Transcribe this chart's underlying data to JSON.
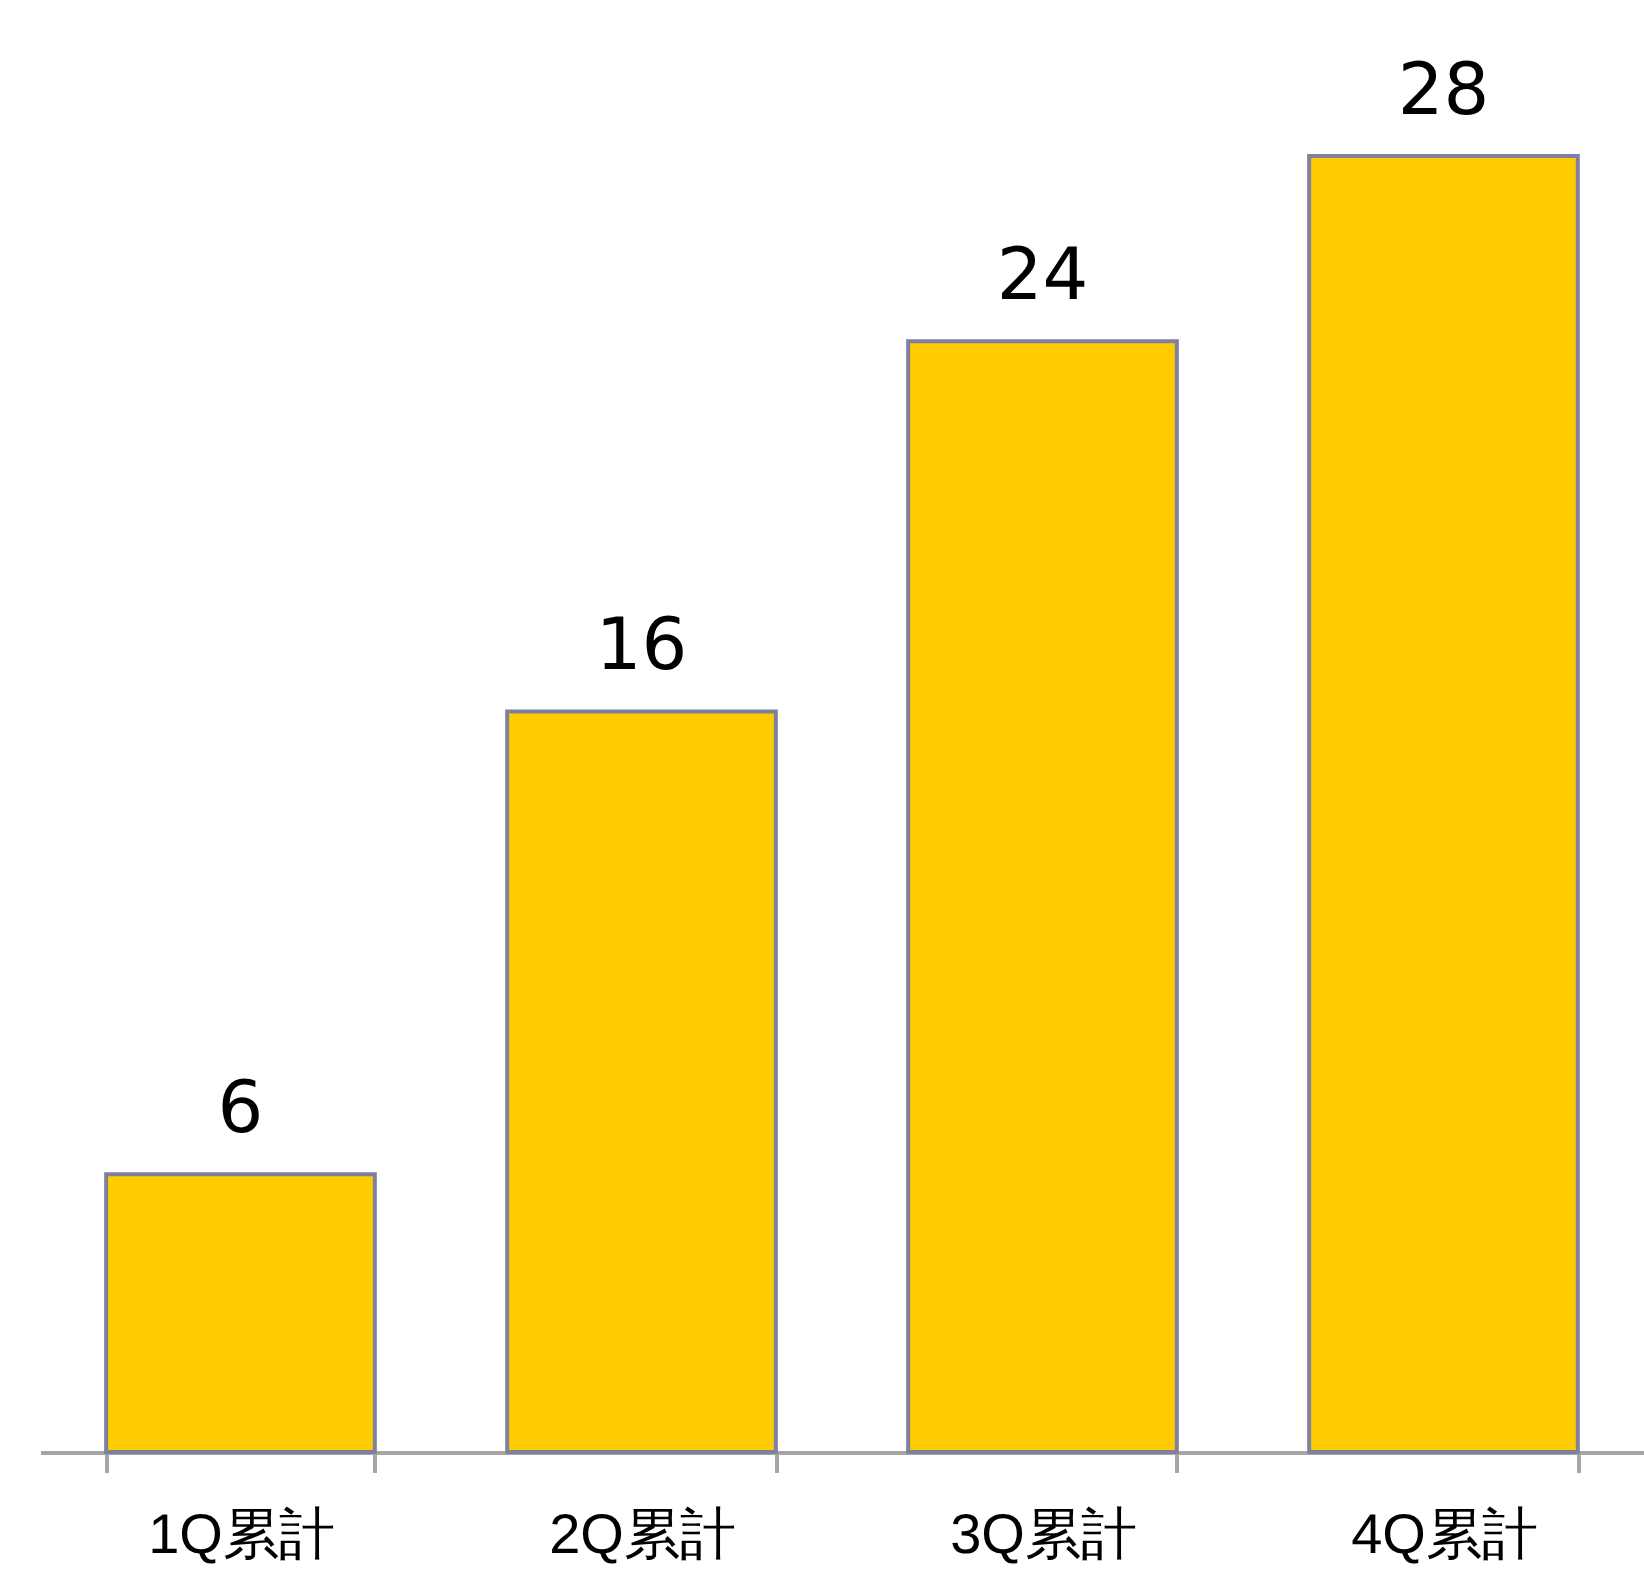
{
  "chart_data": {
    "type": "bar",
    "categories": [
      "1Q累計",
      "2Q累計",
      "3Q累計",
      "4Q累計"
    ],
    "values": [
      6,
      16,
      24,
      28
    ],
    "color": "#ffcc00",
    "data_labels": true
  }
}
